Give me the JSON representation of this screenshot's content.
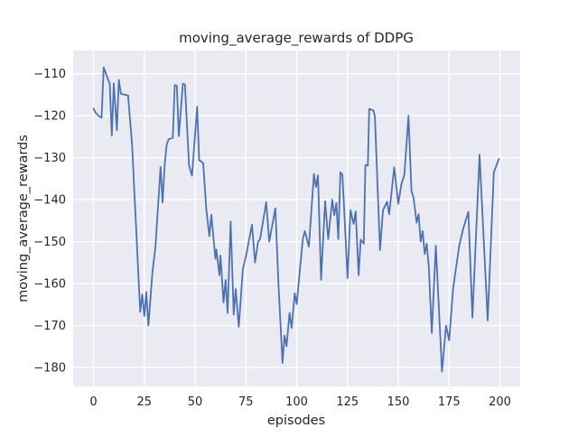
{
  "figure": {
    "title": "moving_average_rewards of DDPG",
    "xlabel": "episodes",
    "ylabel": "moving_average_rewards"
  },
  "chart_data": {
    "type": "line",
    "title": "moving_average_rewards of DDPG",
    "xlabel": "episodes",
    "ylabel": "moving_average_rewards",
    "x_ticks": [
      0,
      25,
      50,
      75,
      100,
      125,
      150,
      175,
      200
    ],
    "y_ticks": [
      -180,
      -170,
      -160,
      -150,
      -140,
      -130,
      -120,
      -110
    ],
    "xlim": [
      -10,
      210
    ],
    "ylim": [
      -184.5,
      -104.5
    ],
    "grid": true,
    "legend_position": "none",
    "style": "seaborn-darkgrid",
    "colors": {
      "figure_background": "#ffffff",
      "axes_background": "#eaeaf2",
      "grid": "#ffffff",
      "line": "#4c72b0",
      "text": "#262626"
    },
    "series": [
      {
        "name": "DDPG moving average rewards",
        "color": "#4c72b0",
        "x": [
          0,
          1,
          2.5,
          4,
          5,
          6,
          7,
          8,
          9,
          10,
          11.5,
          12.5,
          13.5,
          17,
          19,
          20,
          21,
          22,
          23,
          24,
          25,
          26,
          27,
          29,
          30.5,
          33,
          34,
          35,
          36,
          37,
          39,
          40,
          41,
          42,
          44,
          45,
          47,
          48.5,
          51,
          52,
          54,
          55.5,
          57,
          58,
          60,
          60.5,
          62,
          62.5,
          64,
          65,
          66,
          67.5,
          69,
          70,
          71.5,
          73.5,
          75,
          78,
          79.5,
          81,
          82,
          85,
          86.5,
          89.5,
          91,
          93,
          94,
          95,
          96.5,
          97.5,
          99,
          100,
          103,
          104,
          106,
          108.5,
          109.5,
          110.5,
          112,
          114,
          115.5,
          117.5,
          118.5,
          119.5,
          120.5,
          121.5,
          122.5,
          123.5,
          125,
          126.5,
          128,
          129,
          130.5,
          131.5,
          133,
          133.8,
          135,
          135.7,
          137.8,
          138.5,
          141,
          142.5,
          144.5,
          145.5,
          148,
          150,
          151.5,
          153,
          155,
          156.5,
          157.5,
          159,
          160,
          161,
          162,
          163,
          164,
          165,
          166.5,
          168.5,
          171.5,
          173.5,
          175,
          177,
          180,
          182,
          184.5,
          186.5,
          190,
          194,
          197,
          199.5
        ],
        "y": [
          -118.3,
          -119.3,
          -120.0,
          -120.5,
          -108.5,
          -109.8,
          -111.2,
          -112.3,
          -124.8,
          -112.3,
          -123.5,
          -111.5,
          -114.8,
          -115.2,
          -127.0,
          -137.0,
          -147.0,
          -157.0,
          -166.7,
          -162.6,
          -167.7,
          -162.0,
          -170.0,
          -157.3,
          -151.3,
          -132.2,
          -140.7,
          -131.9,
          -127.0,
          -125.6,
          -125.3,
          -112.7,
          -112.9,
          -124.9,
          -112.4,
          -112.6,
          -131.9,
          -134.3,
          -117.9,
          -130.6,
          -131.3,
          -142.2,
          -148.7,
          -143.6,
          -154.1,
          -151.9,
          -158.0,
          -153.3,
          -164.5,
          -159.1,
          -167.0,
          -145.2,
          -167.4,
          -161.3,
          -170.3,
          -156.6,
          -153.5,
          -146.0,
          -155.0,
          -150.0,
          -149.4,
          -140.6,
          -150.0,
          -142.1,
          -160.0,
          -178.9,
          -172.4,
          -174.9,
          -167.0,
          -170.6,
          -162.3,
          -164.9,
          -149.4,
          -147.5,
          -151.2,
          -133.9,
          -137.0,
          -134.2,
          -159.1,
          -140.4,
          -149.4,
          -140.0,
          -143.7,
          -140.8,
          -149.4,
          -133.5,
          -134.0,
          -143.6,
          -158.7,
          -142.5,
          -145.8,
          -142.8,
          -158.0,
          -149.5,
          -150.5,
          -131.8,
          -131.9,
          -118.4,
          -118.8,
          -120.2,
          -152.0,
          -142.5,
          -140.5,
          -143.5,
          -132.3,
          -141.0,
          -136.4,
          -134.0,
          -120.0,
          -137.9,
          -139.5,
          -145.5,
          -143.5,
          -150.0,
          -147.5,
          -153.0,
          -150.5,
          -156.0,
          -171.8,
          -151.0,
          -181.0,
          -170.0,
          -173.5,
          -161.0,
          -151.0,
          -146.8,
          -142.9,
          -168.1,
          -129.3,
          -168.8,
          -133.5,
          -130.3
        ]
      }
    ]
  }
}
